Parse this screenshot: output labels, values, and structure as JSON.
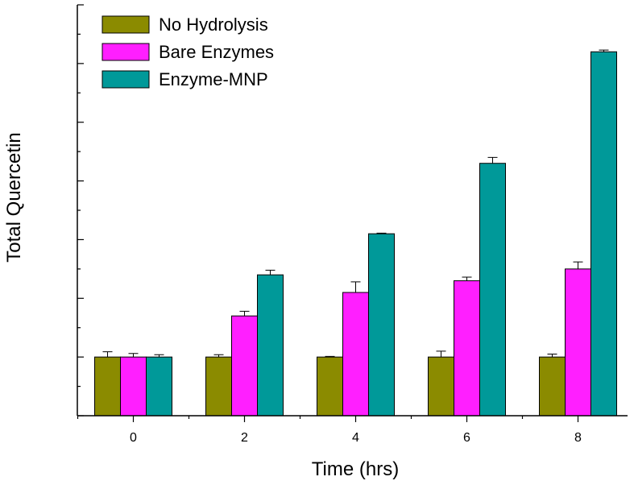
{
  "chart_data": {
    "type": "bar",
    "title": "",
    "xlabel": "Time (hrs)",
    "ylabel": "Total Quercetin",
    "categories": [
      "0",
      "2",
      "4",
      "6",
      "8"
    ],
    "ylim": [
      0,
      7
    ],
    "y_tick_labels_shown": false,
    "legend_position": "top-left",
    "grid": false,
    "series": [
      {
        "name": "No Hydrolysis",
        "color": "#8b8b00",
        "values": [
          1.0,
          1.0,
          1.0,
          1.0,
          1.0
        ],
        "errors": [
          0.09,
          0.04,
          0.01,
          0.1,
          0.05
        ]
      },
      {
        "name": "Bare Enzymes",
        "color": "#ff1fff",
        "values": [
          1.0,
          1.7,
          2.1,
          2.3,
          2.5
        ],
        "errors": [
          0.06,
          0.08,
          0.18,
          0.06,
          0.12
        ]
      },
      {
        "name": "Enzyme-MNP",
        "color": "#009999",
        "values": [
          1.0,
          2.4,
          3.1,
          4.3,
          6.2
        ],
        "errors": [
          0.04,
          0.08,
          0.01,
          0.1,
          0.03
        ]
      }
    ]
  }
}
